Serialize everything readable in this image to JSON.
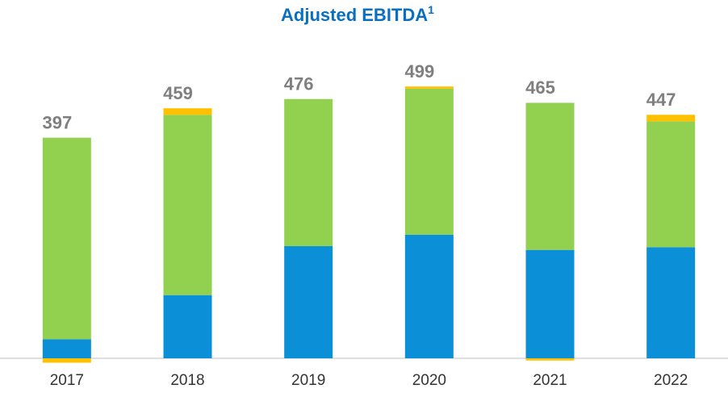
{
  "chart_data": {
    "type": "stacked_bar",
    "title": "Adjusted EBITDA",
    "title_note": "1",
    "categories": [
      "2017",
      "2018",
      "2019",
      "2020",
      "2021",
      "2022"
    ],
    "series": [
      {
        "color": "#0b8fd6",
        "values": [
          35,
          116,
          206,
          227,
          199,
          204
        ]
      },
      {
        "color": "#92d050",
        "values": [
          370,
          331,
          270,
          268,
          270,
          231
        ]
      },
      {
        "color": "#ffc000",
        "values": [
          -8,
          12,
          0,
          4,
          -4,
          12
        ]
      }
    ],
    "totals": [
      397,
      459,
      476,
      499,
      465,
      447
    ],
    "ylim": [
      -20,
      560
    ]
  }
}
